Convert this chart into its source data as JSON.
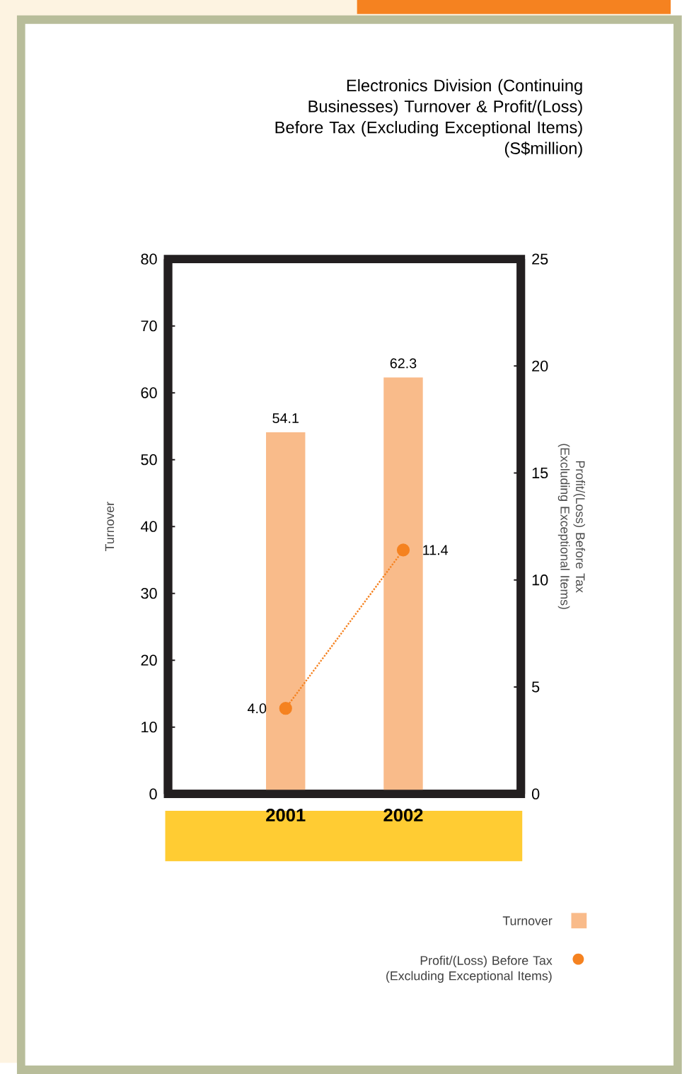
{
  "chart_data": {
    "type": "bar",
    "title": "Electronics Division (Continuing Businesses) Turnover & Profit/(Loss) Before Tax (Excluding Exceptional Items)",
    "subtitle": "(S$million)",
    "categories": [
      "2001",
      "2002"
    ],
    "ylabel": "Turnover",
    "y2label": "Profit/(Loss) Before Tax (Excluding Exceptional Items)",
    "ylim": [
      0,
      80
    ],
    "yticks": [
      0,
      10,
      20,
      30,
      40,
      50,
      60,
      70,
      80
    ],
    "y2lim": [
      0,
      25
    ],
    "y2ticks": [
      0,
      5,
      10,
      15,
      20,
      25
    ],
    "series": [
      {
        "name": "Turnover",
        "color": "#f9bb8a",
        "values": [
          54.1,
          62.3
        ],
        "value_labels": [
          "54.1",
          "62.3"
        ]
      },
      {
        "name": "Profit/(Loss) Before Tax (Excluding Exceptional Items)",
        "type": "line",
        "axis": "y2",
        "color": "#f58220",
        "marker": "circle",
        "line_style": "dotted",
        "values": [
          4.0,
          11.4
        ],
        "value_labels": [
          "4.0",
          "11.4"
        ]
      }
    ],
    "grid": false,
    "legend": "bottom right"
  }
}
